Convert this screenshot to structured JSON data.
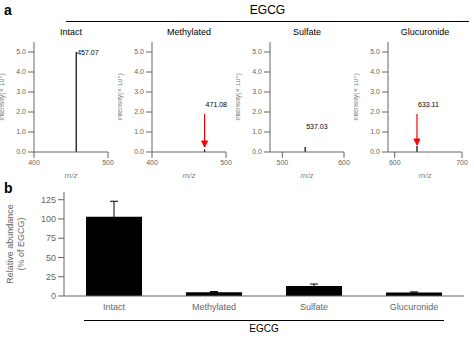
{
  "title": "EGCG",
  "chart_data": [
    {
      "type": "stem",
      "title": "Intact",
      "x": [
        457.07
      ],
      "values": [
        5.0
      ],
      "color": "black",
      "xlabel": "m/z",
      "ylabel": "Intensity(× 10⁵)",
      "xlim": [
        400,
        500
      ],
      "xticks": [
        400,
        500
      ],
      "ylim": [
        0,
        5.5
      ],
      "yticks": [
        {
          "value": 0,
          "label": "0.0"
        },
        {
          "value": 1,
          "label": "1.0"
        },
        {
          "value": 2,
          "label": "2.0"
        },
        {
          "value": 3,
          "label": "3.0"
        },
        {
          "value": 4,
          "label": "4.0"
        },
        {
          "value": 5,
          "label": "5.0"
        }
      ],
      "annotations": [
        {
          "text": "a"
        },
        {
          "text": "457.07",
          "x": 457.07,
          "y": 4.8
        }
      ],
      "arrows": []
    },
    {
      "type": "stem",
      "title": "Methylated",
      "x": [
        471.08
      ],
      "values": [
        0.12
      ],
      "color": "black",
      "xlabel": "m/z",
      "ylabel": "Intensity(× 10⁵)",
      "xlim": [
        400,
        500
      ],
      "xticks": [
        400,
        500
      ],
      "ylim": [
        0,
        5.5
      ],
      "yticks": [
        {
          "value": 0,
          "label": "0.0"
        },
        {
          "value": 1,
          "label": "1.0"
        },
        {
          "value": 2,
          "label": "2.0"
        },
        {
          "value": 3,
          "label": "3.0"
        },
        {
          "value": 4,
          "label": "4.0"
        },
        {
          "value": 5,
          "label": "5.0"
        }
      ],
      "annotations": [
        {
          "text": "471.08",
          "x": 471.08,
          "y": 2.2
        }
      ],
      "arrows": [
        {
          "x": 471.08,
          "from": 1.9,
          "to": 0.25,
          "color": "red"
        }
      ]
    },
    {
      "type": "stem",
      "title": "Sulfate",
      "x": [
        537.03
      ],
      "values": [
        0.25
      ],
      "color": "black",
      "xlabel": "m/z",
      "ylabel": "Intensity(× 10⁵)",
      "xlim": [
        480,
        600
      ],
      "xticks": [
        500,
        600
      ],
      "ylim": [
        0,
        5.5
      ],
      "yticks": [
        {
          "value": 0,
          "label": "0.0"
        },
        {
          "value": 1,
          "label": "1.0"
        },
        {
          "value": 2,
          "label": "2.0"
        },
        {
          "value": 3,
          "label": "3.0"
        },
        {
          "value": 4,
          "label": "4.0"
        },
        {
          "value": 5,
          "label": "5.0"
        }
      ],
      "annotations": [
        {
          "text": "537.03",
          "x": 537.03,
          "y": 1.1
        }
      ],
      "arrows": []
    },
    {
      "type": "stem",
      "title": "Glucuronide",
      "x": [
        633.11
      ],
      "values": [
        0.3
      ],
      "color": "black",
      "xlabel": "m/z",
      "ylabel": "Intensity(× 10⁵)",
      "xlim": [
        590,
        700
      ],
      "xticks": [
        600,
        700
      ],
      "ylim": [
        0,
        5.5
      ],
      "yticks": [
        {
          "value": 0,
          "label": "0.0"
        },
        {
          "value": 1,
          "label": "1.0"
        },
        {
          "value": 2,
          "label": "2.0"
        },
        {
          "value": 3,
          "label": "3.0"
        },
        {
          "value": 4,
          "label": "4.0"
        },
        {
          "value": 5,
          "label": "5.0"
        }
      ],
      "annotations": [
        {
          "text": "633.11",
          "x": 633.11,
          "y": 2.2
        }
      ],
      "arrows": [
        {
          "x": 633.11,
          "from": 1.9,
          "to": 0.35,
          "color": "red"
        }
      ]
    },
    {
      "type": "bar",
      "categories": [
        "Intact",
        "Methylated",
        "Sulfate",
        "Glucuronide"
      ],
      "values": [
        103,
        5,
        13,
        4.5
      ],
      "errors": [
        20,
        0.8,
        2.5,
        0.8
      ],
      "color": "#000000",
      "ylabel": "Relative abundance\n(% of EGCG)",
      "xlabel": "EGCG",
      "ylim": [
        0,
        135
      ],
      "yticks": [
        0,
        25,
        50,
        75,
        100,
        125
      ],
      "annotations": [
        {
          "text": "b"
        }
      ]
    }
  ]
}
